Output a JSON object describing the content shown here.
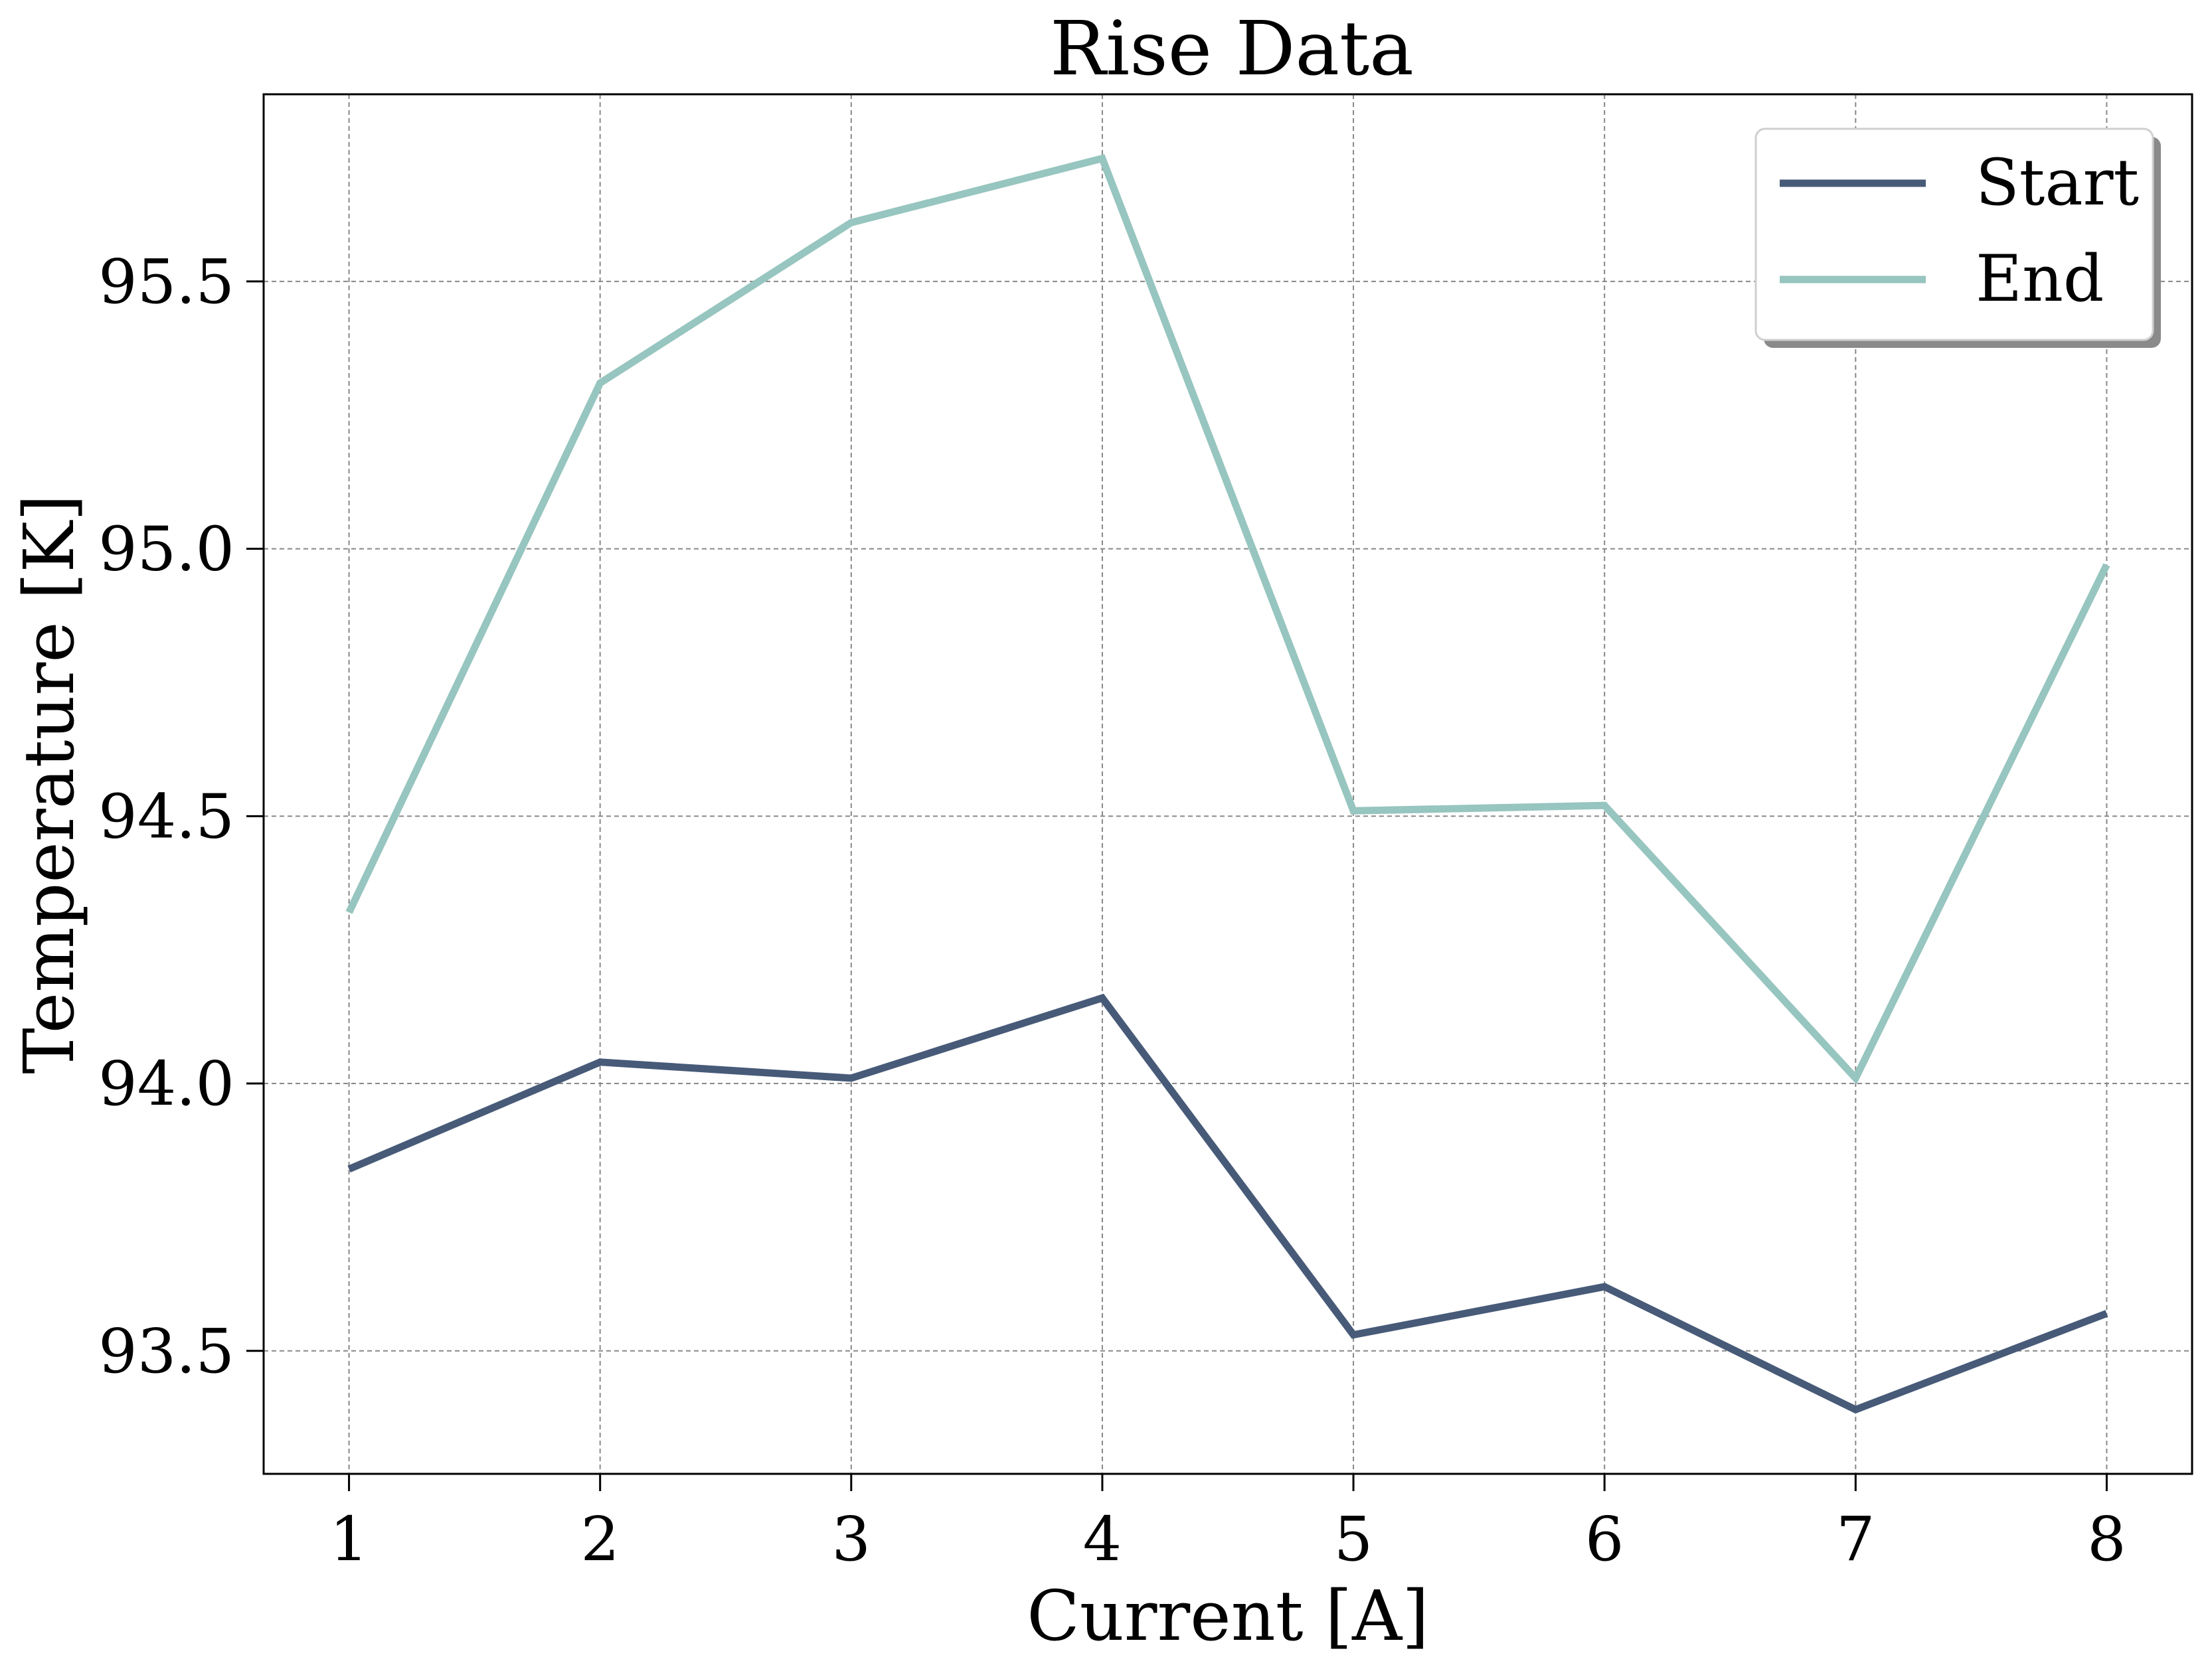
{
  "chart_data": {
    "type": "line",
    "title": "Rise Data",
    "xlabel": "Current [A]",
    "ylabel": "Temperature [K]",
    "x": [
      1,
      2,
      3,
      4,
      5,
      6,
      7,
      8
    ],
    "xlim": [
      0.66,
      8.34
    ],
    "ylim": [
      93.27,
      95.85
    ],
    "xticks": [
      1,
      2,
      3,
      4,
      5,
      6,
      7,
      8
    ],
    "yticks": [
      93.5,
      94.0,
      94.5,
      95.0,
      95.5
    ],
    "xtick_labels": [
      "1",
      "2",
      "3",
      "4",
      "5",
      "6",
      "7",
      "8"
    ],
    "ytick_labels": [
      "93.5",
      "94.0",
      "94.5",
      "95.0",
      "95.5"
    ],
    "grid": true,
    "legend_position": "top-right",
    "series": [
      {
        "name": "Start",
        "color": "#475a78",
        "values": [
          93.84,
          94.04,
          94.01,
          94.16,
          93.53,
          93.62,
          93.39,
          93.57
        ]
      },
      {
        "name": "End",
        "color": "#97c5bf",
        "values": [
          94.32,
          95.31,
          95.61,
          95.73,
          94.51,
          94.52,
          94.01,
          94.97
        ]
      }
    ]
  }
}
